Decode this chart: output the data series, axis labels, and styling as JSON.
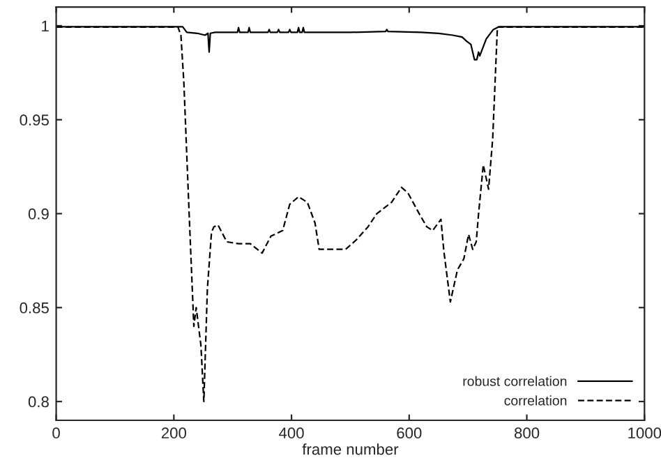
{
  "chart_data": {
    "type": "line",
    "xlabel": "frame number",
    "xlim": [
      0,
      1000
    ],
    "ylim": [
      0.79,
      1.01
    ],
    "xticks": [
      0,
      200,
      400,
      600,
      800,
      1000
    ],
    "yticks": [
      0.8,
      0.85,
      0.9,
      0.95,
      1
    ],
    "legend": "bottom right",
    "grid": false,
    "marker": "none",
    "series": [
      {
        "name": "robust correlation",
        "color": "#000000",
        "line_style": "solid",
        "x": [
          0,
          100,
          215,
          222,
          240,
          253,
          258,
          260,
          262,
          270,
          300,
          308,
          310,
          312,
          326,
          328,
          330,
          360,
          362,
          364,
          376,
          378,
          380,
          395,
          397,
          399,
          410,
          412,
          414,
          418,
          420,
          422,
          500,
          560,
          562,
          564,
          620,
          650,
          674,
          690,
          697,
          705,
          711,
          715,
          718,
          720,
          731,
          743,
          753,
          800,
          900,
          1000
        ],
        "values": [
          0.9995,
          0.9995,
          0.9995,
          0.9965,
          0.996,
          0.995,
          0.996,
          0.986,
          0.996,
          0.9965,
          0.9965,
          0.9965,
          0.999,
          0.9965,
          0.9965,
          0.999,
          0.9965,
          0.9965,
          0.998,
          0.9965,
          0.9965,
          0.998,
          0.9965,
          0.9965,
          0.998,
          0.9965,
          0.9965,
          0.999,
          0.9965,
          0.9965,
          0.999,
          0.9965,
          0.9965,
          0.997,
          0.998,
          0.997,
          0.9965,
          0.996,
          0.995,
          0.994,
          0.992,
          0.99,
          0.982,
          0.982,
          0.986,
          0.984,
          0.993,
          0.998,
          0.9995,
          0.9995,
          0.9995,
          0.9995
        ]
      },
      {
        "name": "correlation",
        "color": "#000000",
        "line_style": "dashed",
        "x": [
          0,
          100,
          207,
          212,
          217,
          226,
          234,
          238,
          240,
          246,
          251,
          257,
          264,
          268,
          275,
          290,
          310,
          330,
          350,
          365,
          385,
          397,
          412,
          427,
          440,
          447,
          470,
          492,
          510,
          530,
          545,
          570,
          587,
          598,
          617,
          630,
          640,
          654,
          659,
          670,
          682,
          693,
          701,
          708,
          714,
          718,
          726,
          735,
          742,
          750,
          800,
          900,
          1000
        ],
        "values": [
          0.9993,
          0.9993,
          0.9993,
          0.995,
          0.97,
          0.9,
          0.84,
          0.85,
          0.845,
          0.83,
          0.8,
          0.86,
          0.89,
          0.893,
          0.894,
          0.885,
          0.884,
          0.884,
          0.879,
          0.888,
          0.891,
          0.905,
          0.909,
          0.906,
          0.895,
          0.881,
          0.881,
          0.881,
          0.886,
          0.893,
          0.9,
          0.906,
          0.914,
          0.911,
          0.9,
          0.893,
          0.891,
          0.897,
          0.88,
          0.853,
          0.87,
          0.876,
          0.889,
          0.881,
          0.885,
          0.9,
          0.926,
          0.913,
          0.94,
          0.9993,
          0.9993,
          0.9993,
          0.9993
        ]
      }
    ]
  }
}
